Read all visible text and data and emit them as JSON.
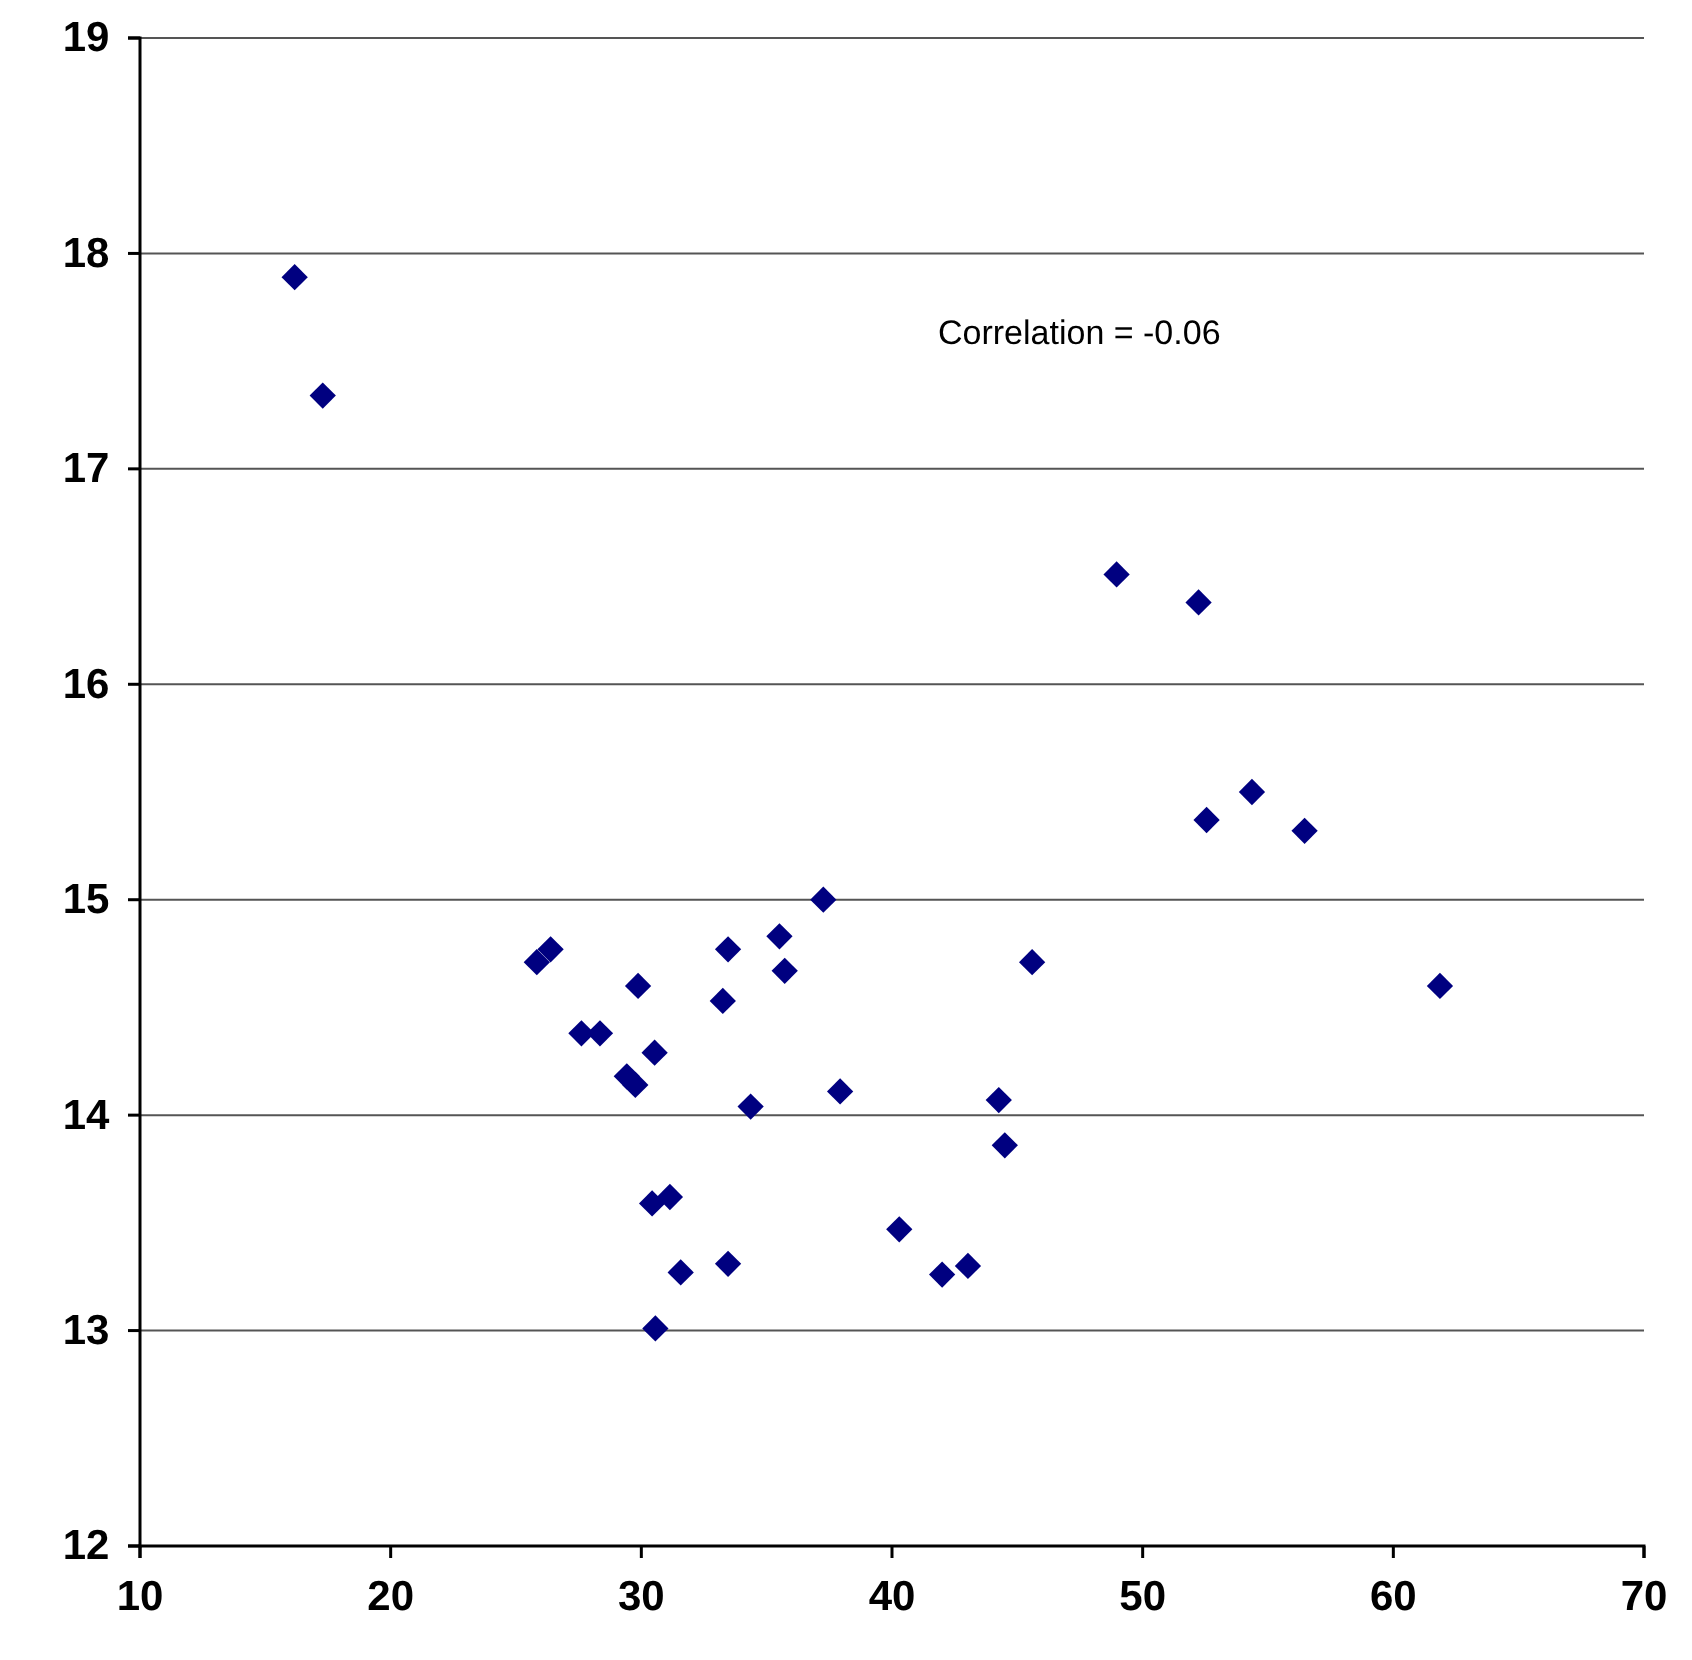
{
  "chart_data": {
    "type": "scatter",
    "x": [
      16.17,
      17.29,
      48.96,
      52.23,
      52.55,
      54.36,
      56.46,
      61.86,
      37.26,
      25.83,
      26.38,
      29.87,
      33.46,
      35.51,
      35.72,
      33.25,
      45.59,
      27.61,
      28.35,
      30.53,
      29.42,
      29.76,
      34.36,
      37.93,
      44.26,
      44.5,
      30.43,
      31.14,
      40.29,
      31.57,
      33.46,
      42.0,
      43.03,
      30.56
    ],
    "series": [
      {
        "color": "#000080",
        "values": [
          17.89,
          17.34,
          16.51,
          16.38,
          15.37,
          15.5,
          15.32,
          14.6,
          15.0,
          14.71,
          14.77,
          14.6,
          14.77,
          14.83,
          14.67,
          14.53,
          14.71,
          14.38,
          14.38,
          14.29,
          14.18,
          14.14,
          14.04,
          14.11,
          14.07,
          13.86,
          13.59,
          13.62,
          13.47,
          13.27,
          13.31,
          13.26,
          13.3,
          13.01
        ]
      }
    ],
    "xlim": [
      10,
      70
    ],
    "xticks": [
      10,
      20,
      30,
      40,
      50,
      60,
      70
    ],
    "ylim": [
      12,
      19
    ],
    "yticks": [
      12,
      13,
      14,
      15,
      16,
      17,
      18,
      19
    ],
    "grid": "y",
    "marker": "diamond",
    "annotations": [
      "Correlation = -0.06"
    ]
  }
}
